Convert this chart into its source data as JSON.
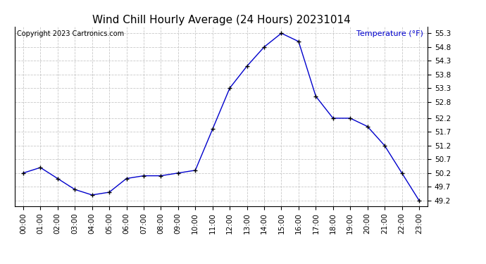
{
  "title": "Wind Chill Hourly Average (24 Hours) 20231014",
  "copyright_text": "Copyright 2023 Cartronics.com",
  "ylabel": "Temperature (°F)",
  "ylabel_color": "#0000cc",
  "line_color": "#0000cc",
  "marker": "+",
  "marker_color": "#000000",
  "background_color": "#ffffff",
  "grid_color": "#bbbbbb",
  "hours": [
    0,
    1,
    2,
    3,
    4,
    5,
    6,
    7,
    8,
    9,
    10,
    11,
    12,
    13,
    14,
    15,
    16,
    17,
    18,
    19,
    20,
    21,
    22,
    23
  ],
  "hour_labels": [
    "00:00",
    "01:00",
    "02:00",
    "03:00",
    "04:00",
    "05:00",
    "06:00",
    "07:00",
    "08:00",
    "09:00",
    "10:00",
    "11:00",
    "12:00",
    "13:00",
    "14:00",
    "15:00",
    "16:00",
    "17:00",
    "18:00",
    "19:00",
    "20:00",
    "21:00",
    "22:00",
    "23:00"
  ],
  "values": [
    50.2,
    50.4,
    50.0,
    49.6,
    49.4,
    49.5,
    50.0,
    50.1,
    50.1,
    50.2,
    50.3,
    51.8,
    53.3,
    54.1,
    54.8,
    55.3,
    55.0,
    53.0,
    52.2,
    52.2,
    51.9,
    51.2,
    50.2,
    49.2
  ],
  "ylim_min": 49.0,
  "ylim_max": 55.55,
  "yticks": [
    49.2,
    49.7,
    50.2,
    50.7,
    51.2,
    51.7,
    52.2,
    52.8,
    53.3,
    53.8,
    54.3,
    54.8,
    55.3
  ],
  "title_fontsize": 11,
  "copyright_fontsize": 7,
  "ylabel_fontsize": 8,
  "tick_fontsize": 7.5
}
